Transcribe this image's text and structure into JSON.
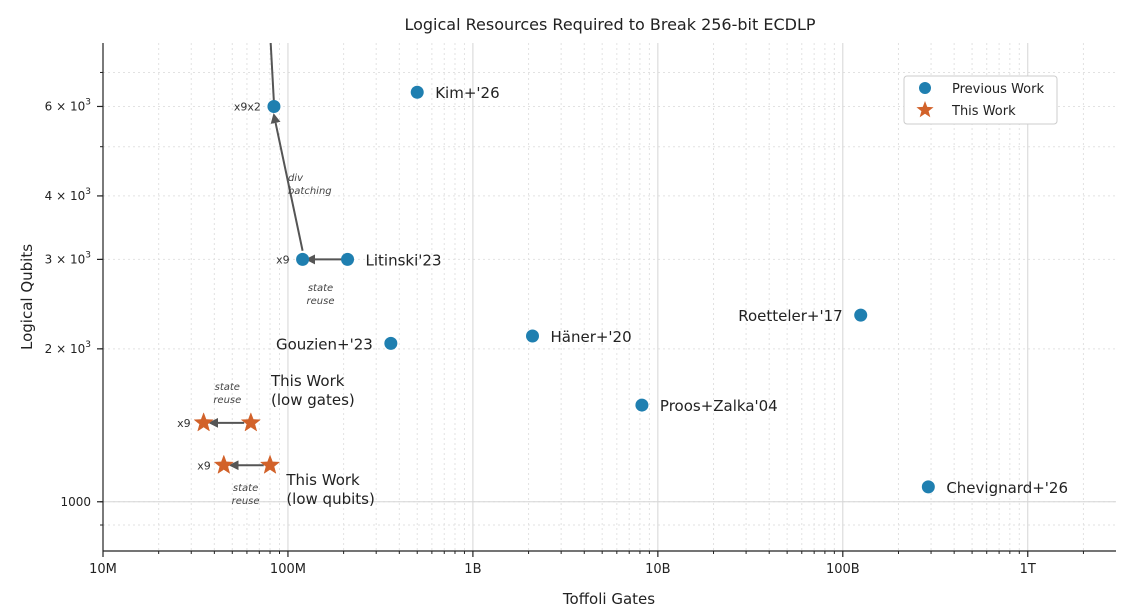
{
  "chart_data": {
    "type": "scatter",
    "title": "Logical Resources Required to Break 256-bit ECDLP",
    "xlabel": "Toffoli Gates",
    "ylabel": "Logical Qubits",
    "x_scale": "log",
    "y_scale": "log",
    "xlim": [
      10000000,
      3000000000000
    ],
    "ylim": [
      800,
      8000
    ],
    "grid": true,
    "x_ticks": [
      {
        "value": 10000000,
        "label": "10M"
      },
      {
        "value": 100000000,
        "label": "100M"
      },
      {
        "value": 1000000000,
        "label": "1B"
      },
      {
        "value": 10000000000,
        "label": "10B"
      },
      {
        "value": 100000000000,
        "label": "100B"
      },
      {
        "value": 1000000000000,
        "label": "1T"
      }
    ],
    "y_ticks": [
      {
        "value": 1000,
        "label": "1000"
      },
      {
        "value": 2000,
        "label": "2 × 10^3",
        "base": "2 × 10",
        "exp": "3"
      },
      {
        "value": 3000,
        "label": "3 × 10^3",
        "base": "3 × 10",
        "exp": "3"
      },
      {
        "value": 4000,
        "label": "4 × 10^3",
        "base": "4 × 10",
        "exp": "3"
      },
      {
        "value": 6000,
        "label": "6 × 10^3",
        "base": "6 × 10",
        "exp": "3"
      }
    ],
    "legend": {
      "position": "top-right",
      "entries": [
        {
          "name": "Previous Work",
          "marker": "circle"
        },
        {
          "name": "This Work",
          "marker": "star"
        }
      ]
    },
    "colors": {
      "previous": "#1f7fb0",
      "this": "#d2622a",
      "arrow": "#555555"
    },
    "series": [
      {
        "name": "Previous Work",
        "marker": "circle",
        "points": [
          {
            "x": 500000000,
            "y": 6400,
            "label": "Kim+'26",
            "label_side": "right"
          },
          {
            "x": 210000000,
            "y": 3000,
            "label": "Litinski'23",
            "label_side": "right"
          },
          {
            "x": 360000000,
            "y": 2050,
            "label": "Gouzien+'23",
            "label_side": "left"
          },
          {
            "x": 2100000000,
            "y": 2120,
            "label": "Häner+'20",
            "label_side": "right"
          },
          {
            "x": 8200000000,
            "y": 1550,
            "label": "Proos+Zalka'04",
            "label_side": "right"
          },
          {
            "x": 125000000000,
            "y": 2330,
            "label": "Roetteler+'17",
            "label_side": "left"
          },
          {
            "x": 290000000000,
            "y": 1070,
            "label": "Chevignard+'26",
            "label_side": "right"
          },
          {
            "x": 120000000,
            "y": 3000,
            "label": "x9",
            "label_side": "left-small"
          },
          {
            "x": 84000000,
            "y": 6000,
            "label": "x9x2",
            "label_side": "left-small"
          }
        ]
      },
      {
        "name": "This Work",
        "marker": "star",
        "points": [
          {
            "x": 63000000,
            "y": 1430,
            "label": ""
          },
          {
            "x": 35000000,
            "y": 1430,
            "label": "x9",
            "label_side": "left-small"
          },
          {
            "x": 80000000,
            "y": 1180,
            "label": ""
          },
          {
            "x": 45000000,
            "y": 1180,
            "label": "x9",
            "label_side": "left-small"
          }
        ]
      }
    ],
    "arrows": [
      {
        "from": {
          "x": 200000000,
          "y": 3000
        },
        "to": {
          "x": 127000000,
          "y": 3000
        }
      },
      {
        "from": {
          "x": 120000000,
          "y": 3120
        },
        "to": {
          "x": 84000000,
          "y": 5770
        }
      },
      {
        "from": {
          "x": 84000000,
          "y": 6100
        },
        "to": {
          "x": 78000000,
          "y": 10000
        }
      },
      {
        "from": {
          "x": 58000000,
          "y": 1430
        },
        "to": {
          "x": 38000000,
          "y": 1430
        }
      },
      {
        "from": {
          "x": 74000000,
          "y": 1180
        },
        "to": {
          "x": 49000000,
          "y": 1180
        }
      }
    ],
    "annotations": [
      {
        "lines": [
          "div",
          "batching"
        ],
        "x": 100000000,
        "y": 4280,
        "anchor": "start"
      },
      {
        "lines": [
          "state",
          "reuse"
        ],
        "x": 150000000,
        "y": 2600,
        "anchor": "middle"
      },
      {
        "lines": [
          "state",
          "reuse"
        ],
        "x": 47000000,
        "y": 1660,
        "anchor": "middle"
      },
      {
        "lines": [
          "state",
          "reuse"
        ],
        "x": 59000000,
        "y": 1050,
        "anchor": "middle"
      }
    ],
    "group_labels": [
      {
        "lines": [
          "This Work",
          "(low gates)"
        ],
        "x": 81000000,
        "y": 1690
      },
      {
        "lines": [
          "This Work",
          "(low qubits)"
        ],
        "x": 98000000,
        "y": 1080
      }
    ]
  }
}
